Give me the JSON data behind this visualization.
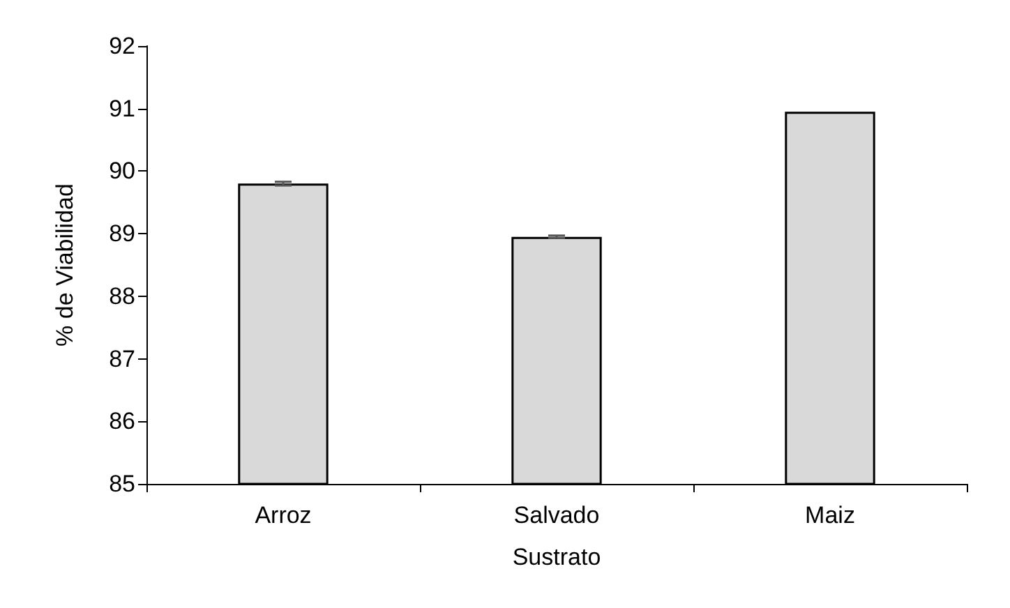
{
  "chart_data": {
    "type": "bar",
    "xlabel": "Sustrato",
    "ylabel": "% de Viabilidad",
    "categories": [
      "Arroz",
      "Salvado",
      "Maiz"
    ],
    "values": [
      89.8,
      88.95,
      90.95
    ],
    "errors": [
      0.03,
      0.02,
      null
    ],
    "color": "#d9d9d9",
    "ylim": [
      85,
      92
    ],
    "yticks": [
      85,
      86,
      87,
      88,
      89,
      90,
      91,
      92
    ],
    "grid": false
  }
}
